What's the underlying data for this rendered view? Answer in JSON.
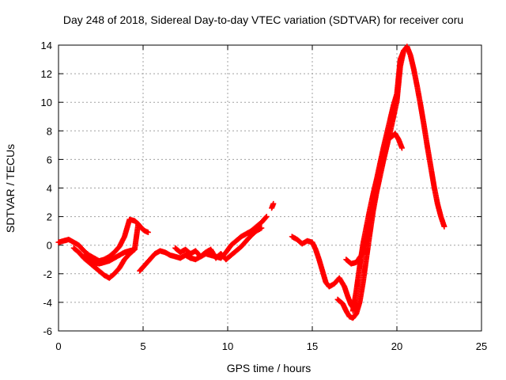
{
  "chart_data": {
    "type": "scatter",
    "title": "Day 248 of 2018, Sidereal Day-to-day VTEC variation (SDTVAR) for receiver coru",
    "xlabel": "GPS time / hours",
    "ylabel": "SDTVAR / TECUs",
    "xlim": [
      0,
      25
    ],
    "ylim": [
      -6,
      14
    ],
    "x_ticks": [
      0,
      5,
      10,
      15,
      20,
      25
    ],
    "y_ticks": [
      -6,
      -4,
      -2,
      0,
      2,
      4,
      6,
      8,
      10,
      12,
      14
    ],
    "x_tick_labels": [
      "0",
      "5",
      "10",
      "15",
      "20",
      "25"
    ],
    "y_tick_labels": [
      "-6",
      "-4",
      "-2",
      "0",
      "2",
      "4",
      "6",
      "8",
      "10",
      "12",
      "14"
    ],
    "grid": true,
    "marker": "+",
    "series": [
      {
        "name": "SDTVAR",
        "color": "#ff0000",
        "segments": [
          {
            "x": [
              0.0,
              0.3,
              0.6,
              0.9,
              1.2,
              1.5,
              1.8,
              2.1,
              2.4,
              2.7,
              3.0,
              3.3,
              3.6,
              3.9,
              4.2,
              4.5,
              4.7,
              4.9,
              5.1,
              5.3
            ],
            "y": [
              0.2,
              0.3,
              0.4,
              0.2,
              0.0,
              -0.4,
              -0.7,
              -0.9,
              -1.1,
              -1.0,
              -0.8,
              -0.5,
              -0.1,
              0.6,
              1.8,
              1.7,
              1.5,
              1.2,
              1.0,
              0.9
            ]
          },
          {
            "x": [
              0.9,
              1.2,
              1.5,
              1.8,
              2.1,
              2.4,
              2.7,
              3.0,
              3.3,
              3.6,
              3.9,
              4.2,
              4.5,
              4.7
            ],
            "y": [
              -0.2,
              -0.5,
              -0.9,
              -1.2,
              -1.5,
              -1.8,
              -2.1,
              -2.3,
              -2.0,
              -1.6,
              -1.0,
              -0.6,
              -0.3,
              1.4
            ]
          },
          {
            "x": [
              1.5,
              1.8,
              2.1,
              2.4,
              2.7,
              3.0,
              3.3,
              3.6,
              3.9,
              4.2,
              4.5
            ],
            "y": [
              -0.8,
              -1.0,
              -1.2,
              -1.3,
              -1.2,
              -1.1,
              -0.9,
              -0.7,
              -0.5,
              -0.4,
              -0.3
            ]
          },
          {
            "x": [
              4.8,
              5.1,
              5.4,
              5.7,
              6.0,
              6.3,
              6.6,
              6.9,
              7.2,
              7.5,
              7.8,
              8.1,
              8.4,
              8.7,
              9.0,
              9.3,
              9.6,
              9.9,
              10.2,
              10.5,
              10.8,
              11.1,
              11.4,
              11.7,
              12.0,
              12.3
            ],
            "y": [
              -1.8,
              -1.4,
              -1.0,
              -0.6,
              -0.4,
              -0.5,
              -0.7,
              -0.8,
              -0.9,
              -0.7,
              -0.9,
              -1.0,
              -0.8,
              -0.6,
              -0.7,
              -0.8,
              -0.9,
              -0.5,
              0.0,
              0.3,
              0.6,
              0.8,
              1.0,
              1.3,
              1.6,
              2.0
            ]
          },
          {
            "x": [
              6.9,
              7.2,
              7.5,
              7.8,
              8.1,
              8.4,
              8.7,
              9.0,
              9.3,
              9.6,
              9.9,
              10.2,
              10.5,
              10.8,
              11.1,
              11.4,
              11.7,
              12.0
            ],
            "y": [
              -0.2,
              -0.5,
              -0.3,
              -0.6,
              -0.4,
              -0.8,
              -0.5,
              -0.3,
              -0.9,
              -0.6,
              -1.0,
              -0.7,
              -0.4,
              -0.1,
              0.3,
              0.7,
              1.0,
              1.2
            ]
          },
          {
            "x": [
              12.6,
              12.7
            ],
            "y": [
              2.6,
              2.9
            ]
          },
          {
            "x": [
              13.8,
              14.1,
              14.4,
              14.7,
              15.0,
              15.2,
              15.4,
              15.6,
              15.8,
              16.0,
              16.3,
              16.6,
              16.9,
              17.1,
              17.3,
              17.5
            ],
            "y": [
              0.6,
              0.4,
              0.1,
              0.3,
              0.2,
              -0.3,
              -1.0,
              -1.8,
              -2.6,
              -2.9,
              -2.7,
              -2.3,
              -2.9,
              -3.6,
              -4.2,
              -4.5
            ]
          },
          {
            "x": [
              16.5,
              16.8,
              17.0,
              17.2,
              17.4,
              17.6,
              17.8,
              18.0,
              18.2,
              18.4,
              18.6,
              18.8,
              19.0,
              19.2,
              19.4,
              19.6,
              19.8,
              20.0,
              20.2,
              20.4,
              20.6,
              20.8,
              21.0,
              21.2,
              21.4,
              21.6,
              21.8,
              22.0,
              22.2,
              22.4,
              22.6,
              22.8
            ],
            "y": [
              -3.8,
              -4.1,
              -4.6,
              -5.0,
              -5.1,
              -4.8,
              -4.0,
              -2.6,
              -0.9,
              0.8,
              2.4,
              3.7,
              4.8,
              5.9,
              6.9,
              7.9,
              9.0,
              10.1,
              12.5,
              13.6,
              13.9,
              13.3,
              12.3,
              11.1,
              9.8,
              8.4,
              6.9,
              5.5,
              4.1,
              2.9,
              2.0,
              1.3
            ]
          },
          {
            "x": [
              17.0,
              17.3,
              17.6,
              17.9,
              18.2,
              18.5,
              18.8,
              19.1,
              19.4,
              19.7,
              19.9,
              20.1,
              20.3
            ],
            "y": [
              -1.0,
              -1.3,
              -1.2,
              -0.7,
              0.5,
              2.2,
              4.0,
              6.0,
              7.3,
              7.6,
              7.8,
              7.4,
              6.8
            ]
          },
          {
            "x": [
              17.4,
              17.6,
              17.8,
              18.0,
              18.2,
              18.4,
              18.6,
              18.8,
              19.0,
              19.2,
              19.4,
              19.6,
              19.8,
              20.0,
              20.2,
              20.4,
              20.6
            ],
            "y": [
              -4.6,
              -3.2,
              -1.5,
              0.1,
              1.3,
              2.5,
              3.6,
              4.6,
              5.7,
              6.8,
              7.8,
              8.8,
              9.8,
              10.6,
              13.0,
              13.6,
              13.8
            ]
          }
        ]
      }
    ]
  }
}
